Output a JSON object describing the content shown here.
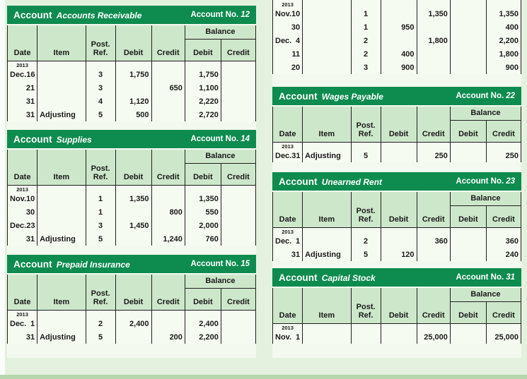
{
  "colors": {
    "accent_green": "#0e8b4f",
    "column_header_green": "#cde7ca",
    "card_background": "#f3f9ef",
    "page_background": "#e4f1de",
    "grid_line": "#1f1f1f"
  },
  "labels": {
    "account": "Account",
    "account_no": "Account No.",
    "balance": "Balance",
    "date": "Date",
    "item": "Item",
    "post_ref_line1": "Post.",
    "post_ref_line2": "Ref.",
    "debit": "Debit",
    "credit": "Credit"
  },
  "tables": [
    {
      "id": "accounts-receivable",
      "account_name": "Accounts Receivable",
      "account_no": "12",
      "year": "2013",
      "rows": [
        {
          "month": "Dec.",
          "day": "16",
          "item": "",
          "ref": "3",
          "debit": "1,750",
          "credit": "",
          "bal_debit": "1,750",
          "bal_credit": ""
        },
        {
          "month": "",
          "day": "21",
          "item": "",
          "ref": "3",
          "debit": "",
          "credit": "650",
          "bal_debit": "1,100",
          "bal_credit": ""
        },
        {
          "month": "",
          "day": "31",
          "item": "",
          "ref": "4",
          "debit": "1,120",
          "credit": "",
          "bal_debit": "2,220",
          "bal_credit": ""
        },
        {
          "month": "",
          "day": "31",
          "item": "Adjusting",
          "ref": "5",
          "debit": "500",
          "credit": "",
          "bal_debit": "2,720",
          "bal_credit": ""
        }
      ]
    },
    {
      "id": "supplies",
      "account_name": "Supplies",
      "account_no": "14",
      "year": "2013",
      "rows": [
        {
          "month": "Nov.",
          "day": "10",
          "item": "",
          "ref": "1",
          "debit": "1,350",
          "credit": "",
          "bal_debit": "1,350",
          "bal_credit": ""
        },
        {
          "month": "",
          "day": "30",
          "item": "",
          "ref": "1",
          "debit": "",
          "credit": "800",
          "bal_debit": "550",
          "bal_credit": ""
        },
        {
          "month": "Dec.",
          "day": "23",
          "item": "",
          "ref": "3",
          "debit": "1,450",
          "credit": "",
          "bal_debit": "2,000",
          "bal_credit": ""
        },
        {
          "month": "",
          "day": "31",
          "item": "Adjusting",
          "ref": "5",
          "debit": "",
          "credit": "1,240",
          "bal_debit": "760",
          "bal_credit": ""
        }
      ]
    },
    {
      "id": "prepaid-insurance",
      "account_name": "Prepaid Insurance",
      "account_no": "15",
      "year": "2013",
      "rows": [
        {
          "month": "Dec.",
          "day": "1",
          "item": "",
          "ref": "2",
          "debit": "2,400",
          "credit": "",
          "bal_debit": "2,400",
          "bal_credit": ""
        },
        {
          "month": "",
          "day": "31",
          "item": "Adjusting",
          "ref": "5",
          "debit": "",
          "credit": "200",
          "bal_debit": "2,200",
          "bal_credit": ""
        }
      ]
    },
    {
      "id": "continued-account-top-right",
      "account_name": "",
      "account_no": "",
      "year": "2013",
      "rows": [
        {
          "month": "Nov.",
          "day": "10",
          "item": "",
          "ref": "1",
          "debit": "",
          "credit": "1,350",
          "bal_debit": "",
          "bal_credit": "1,350"
        },
        {
          "month": "",
          "day": "30",
          "item": "",
          "ref": "1",
          "debit": "950",
          "credit": "",
          "bal_debit": "",
          "bal_credit": "400"
        },
        {
          "month": "Dec.",
          "day": "4",
          "item": "",
          "ref": "2",
          "debit": "",
          "credit": "1,800",
          "bal_debit": "",
          "bal_credit": "2,200"
        },
        {
          "month": "",
          "day": "11",
          "item": "",
          "ref": "2",
          "debit": "400",
          "credit": "",
          "bal_debit": "",
          "bal_credit": "1,800"
        },
        {
          "month": "",
          "day": "20",
          "item": "",
          "ref": "3",
          "debit": "900",
          "credit": "",
          "bal_debit": "",
          "bal_credit": "900"
        }
      ]
    },
    {
      "id": "wages-payable",
      "account_name": "Wages Payable",
      "account_no": "22",
      "year": "2013",
      "rows": [
        {
          "month": "Dec.",
          "day": "31",
          "item": "Adjusting",
          "ref": "5",
          "debit": "",
          "credit": "250",
          "bal_debit": "",
          "bal_credit": "250"
        }
      ]
    },
    {
      "id": "unearned-rent",
      "account_name": "Unearned Rent",
      "account_no": "23",
      "year": "2013",
      "rows": [
        {
          "month": "Dec.",
          "day": "1",
          "item": "",
          "ref": "2",
          "debit": "",
          "credit": "360",
          "bal_debit": "",
          "bal_credit": "360"
        },
        {
          "month": "",
          "day": "31",
          "item": "Adjusting",
          "ref": "5",
          "debit": "120",
          "credit": "",
          "bal_debit": "",
          "bal_credit": "240"
        }
      ]
    },
    {
      "id": "capital-stock",
      "account_name": "Capital Stock",
      "account_no": "31",
      "year": "2013",
      "rows": [
        {
          "month": "Nov.",
          "day": "1",
          "item": "",
          "ref": "",
          "debit": "",
          "credit": "25,000",
          "bal_debit": "",
          "bal_credit": "25,000"
        }
      ]
    }
  ]
}
